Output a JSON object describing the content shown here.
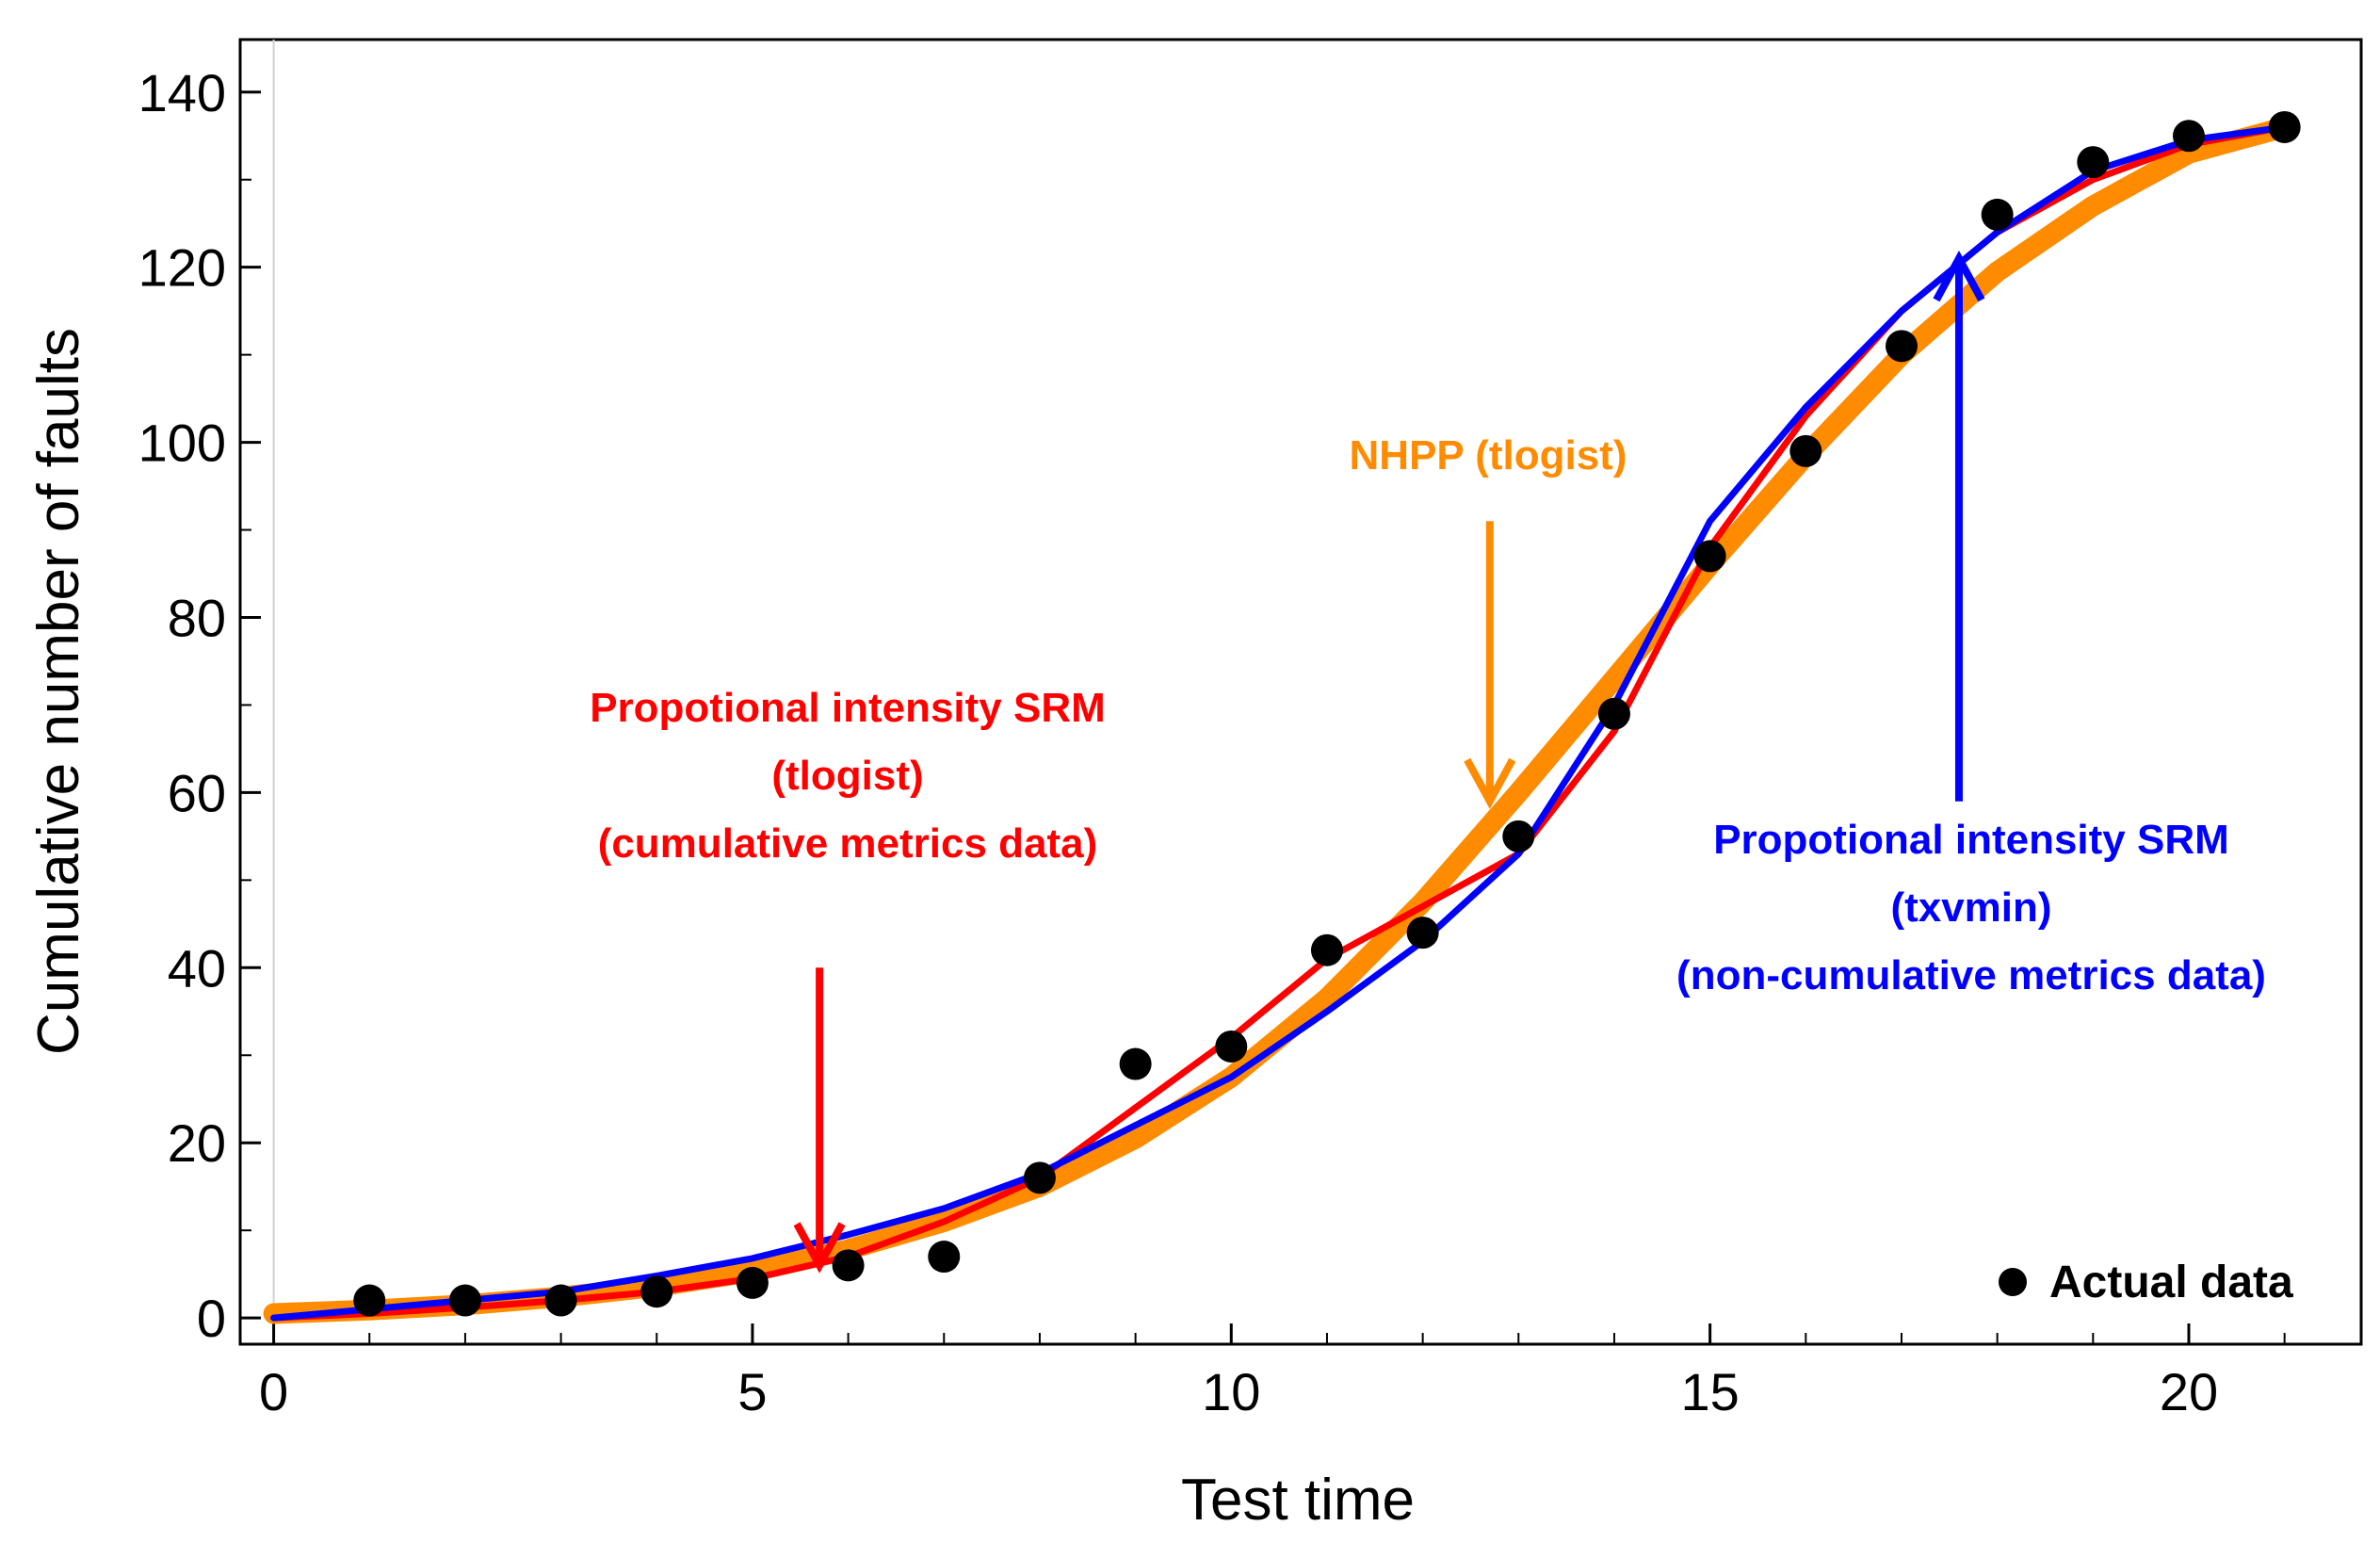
{
  "chart_data": {
    "type": "line",
    "title": "",
    "xlabel": "Test time",
    "ylabel": "Cumulative number of faults",
    "xlim": [
      -0.35,
      21.8
    ],
    "ylim": [
      -3,
      146
    ],
    "xticks": [
      0,
      5,
      10,
      15,
      20
    ],
    "yticks": [
      0,
      20,
      40,
      60,
      80,
      100,
      120,
      140
    ],
    "colors": {
      "nhpp": "#ff8c00",
      "red": "#ff0000",
      "blue": "#0000ff",
      "data": "#000000"
    },
    "series": [
      {
        "name": "Actual data",
        "kind": "scatter",
        "x": [
          1,
          2,
          3,
          4,
          5,
          6,
          7,
          8,
          9,
          10,
          11,
          12,
          13,
          14,
          15,
          16,
          17,
          18,
          19,
          20,
          21
        ],
        "y": [
          2,
          2,
          2,
          3,
          4,
          6,
          7,
          16,
          29,
          31,
          42,
          44,
          55,
          69,
          87,
          99,
          111,
          126,
          132,
          135,
          136
        ]
      },
      {
        "name": "NHPP (tlogist)",
        "kind": "line",
        "x": [
          0,
          1,
          2,
          3,
          4,
          5,
          6,
          7,
          8,
          9,
          10,
          11,
          12,
          13,
          14,
          15,
          16,
          17,
          18,
          19,
          20,
          21
        ],
        "y": [
          0.5,
          0.9,
          1.5,
          2.4,
          3.6,
          5.3,
          7.8,
          11,
          15,
          20.5,
          27.5,
          36.5,
          47.5,
          60,
          73,
          86,
          98.5,
          110,
          119.5,
          127,
          133,
          136
        ]
      },
      {
        "name": "Propotional intensity SRM (tlogist) (cumulative metrics data)",
        "kind": "line",
        "x": [
          0,
          1,
          2,
          3,
          4,
          5,
          6,
          7,
          8,
          9,
          10,
          11,
          12,
          13,
          14,
          15,
          16,
          17,
          18,
          19,
          20,
          21
        ],
        "y": [
          0,
          0.5,
          1.2,
          2,
          3,
          4.5,
          7,
          11,
          16,
          24,
          32,
          41,
          47,
          53,
          67,
          88,
          103,
          115,
          124,
          130,
          134,
          136
        ]
      },
      {
        "name": "Propotional intensity SRM (txvmin) (non-cumulative metrics data)",
        "kind": "line",
        "x": [
          0,
          1,
          2,
          3,
          4,
          5,
          6,
          7,
          8,
          9,
          10,
          11,
          12,
          13,
          14,
          15,
          16,
          17,
          18,
          19,
          20,
          21
        ],
        "y": [
          0,
          1,
          2,
          3,
          4.8,
          6.8,
          9.5,
          12.5,
          16.5,
          22,
          27.5,
          35,
          43,
          53,
          70,
          91,
          104,
          115,
          124,
          131,
          134.5,
          136
        ]
      }
    ],
    "annotations": [
      {
        "id": "red",
        "lines": [
          "Propotional intensity SRM",
          "(tlogist)",
          "(cumulative metrics data)"
        ],
        "arrow_from": [
          5.7,
          40
        ],
        "arrow_to": [
          5.7,
          6
        ]
      },
      {
        "id": "orange",
        "lines": [
          "NHPP (tlogist)"
        ],
        "arrow_from": [
          12.7,
          91
        ],
        "arrow_to": [
          12.7,
          59
        ]
      },
      {
        "id": "blue",
        "lines": [
          "Propotional intensity SRM",
          "(txvmin)",
          "(non-cumulative metrics data)"
        ],
        "arrow_from": [
          17.6,
          59
        ],
        "arrow_to": [
          17.6,
          121
        ]
      }
    ],
    "legend": {
      "label": "Actual data",
      "position": "bottom-right"
    }
  }
}
